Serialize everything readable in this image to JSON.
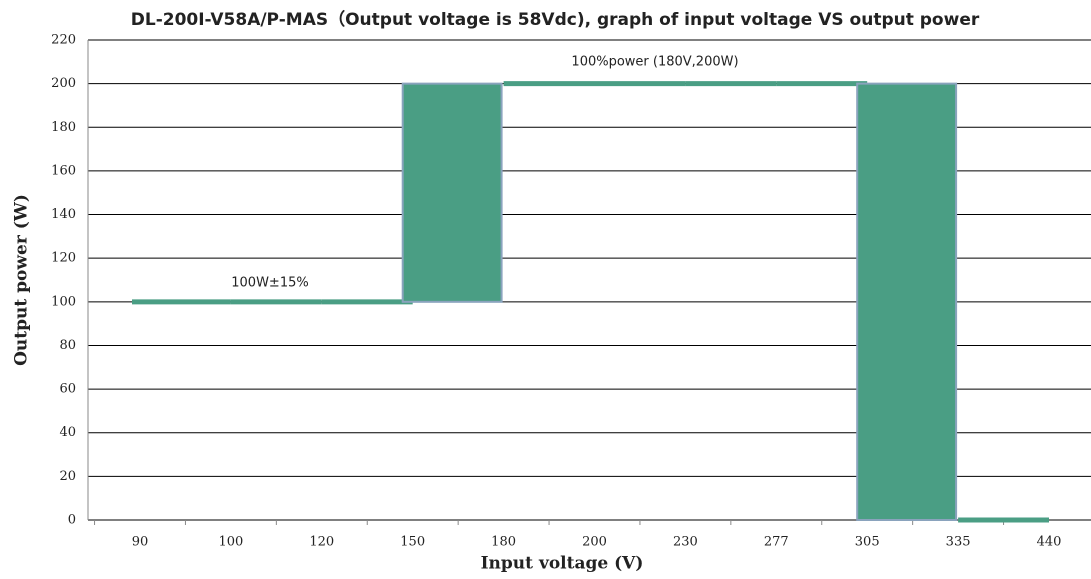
{
  "chart_data": {
    "type": "step",
    "title": "DL-200I-V58A/P-MAS（Output voltage is 58Vdc), graph of input voltage VS output power",
    "x_label": "Input voltage (V)",
    "y_label": "Output power (W)",
    "annotations": [
      "100W±15%",
      "100%power (180V,200W)"
    ],
    "categories": [
      "90",
      "100",
      "120",
      "150",
      "180",
      "200",
      "230",
      "277",
      "305",
      "335",
      "440"
    ],
    "values": [
      100,
      100,
      100,
      100,
      200,
      200,
      200,
      200,
      200,
      0,
      0
    ],
    "color": "#4a9e84",
    "ylim": [
      0,
      220
    ],
    "yticks": [
      0,
      20,
      40,
      60,
      80,
      100,
      120,
      140,
      160,
      180,
      200,
      220
    ],
    "grid": true
  }
}
